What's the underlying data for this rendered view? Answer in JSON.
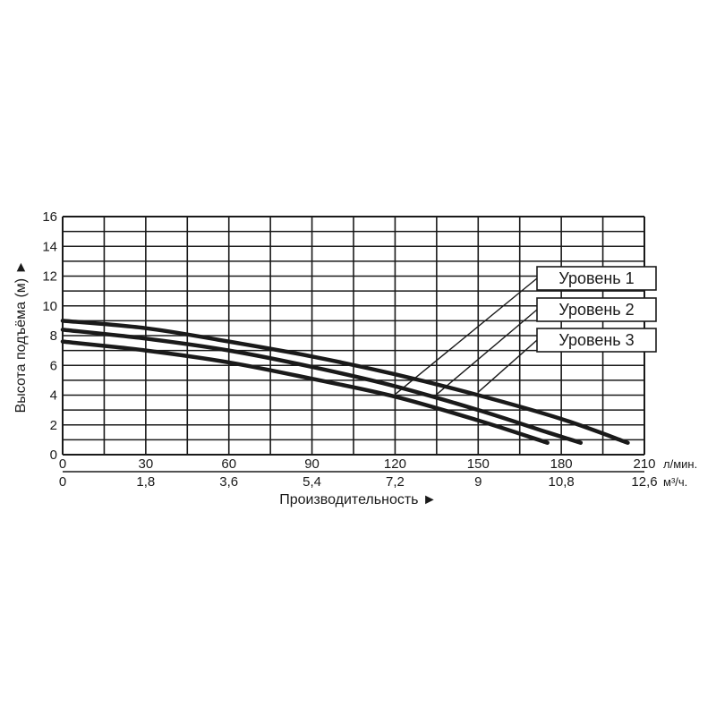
{
  "chart_data": {
    "type": "line",
    "title": "",
    "ylabel": "Высота подъёма (м) ►",
    "xlabel": "Производительность ►",
    "ylim": [
      0,
      16
    ],
    "y_ticks": [
      "0",
      "2",
      "4",
      "6",
      "8",
      "10",
      "12",
      "14",
      "16"
    ],
    "xlim": [
      0,
      210
    ],
    "x_ticks_lpm": [
      "0",
      "30",
      "60",
      "90",
      "120",
      "150",
      "180",
      "210"
    ],
    "x_unit_lpm": "л/мин.",
    "x_ticks_m3h": [
      "0",
      "1,8",
      "3,6",
      "5,4",
      "7,2",
      "9",
      "10,8",
      "12,6"
    ],
    "x_unit_m3h": "м³/ч.",
    "grid": true,
    "legend_position": "top-right",
    "series": [
      {
        "name": "Уровень 1",
        "color": "#1a1a1a",
        "points": [
          [
            0,
            7.6
          ],
          [
            30,
            7.0
          ],
          [
            60,
            6.2
          ],
          [
            90,
            5.1
          ],
          [
            120,
            3.9
          ],
          [
            150,
            2.3
          ],
          [
            175,
            0.8
          ]
        ]
      },
      {
        "name": "Уровень 2",
        "color": "#1a1a1a",
        "points": [
          [
            0,
            8.4
          ],
          [
            30,
            7.8
          ],
          [
            60,
            7.0
          ],
          [
            90,
            5.9
          ],
          [
            120,
            4.6
          ],
          [
            150,
            3.0
          ],
          [
            175,
            1.5
          ],
          [
            187,
            0.8
          ]
        ]
      },
      {
        "name": "Уровень 3",
        "color": "#1a1a1a",
        "points": [
          [
            0,
            9.0
          ],
          [
            30,
            8.5
          ],
          [
            60,
            7.6
          ],
          [
            90,
            6.6
          ],
          [
            120,
            5.4
          ],
          [
            150,
            4.0
          ],
          [
            180,
            2.4
          ],
          [
            204,
            0.8
          ]
        ]
      }
    ]
  }
}
